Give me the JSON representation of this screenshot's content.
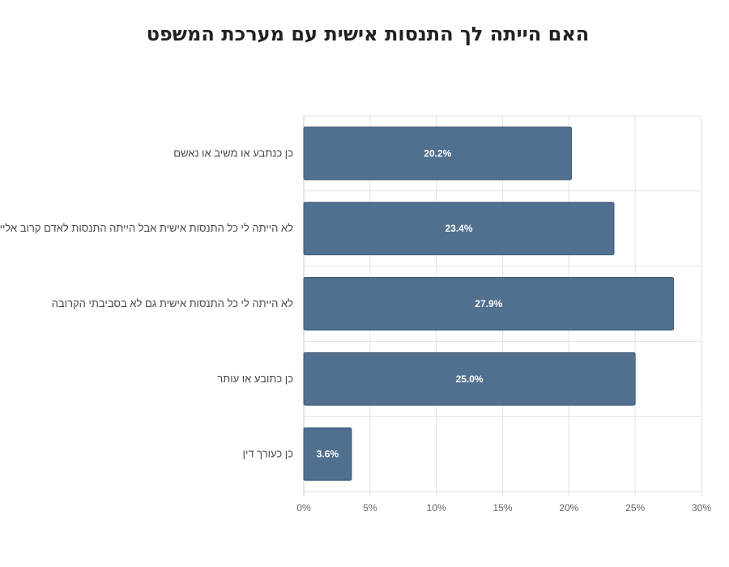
{
  "chart_data": {
    "type": "bar",
    "orientation": "horizontal",
    "title": "האם הייתה לך התנסות אישית עם מערכת המשפט",
    "categories": [
      "כן כנתבע או משיב או נאשם",
      "לא הייתה לי כל התנסות אישית אבל הייתה התנסות לאדם קרוב אליי",
      "לא הייתה לי כל התנסות אישית גם לא בסביבתי הקרובה",
      "כן כתובע או עותר",
      "כן כעורך דין"
    ],
    "values": [
      20.2,
      23.4,
      27.9,
      25.0,
      3.6
    ],
    "value_labels": [
      "20.2%",
      "23.4%",
      "27.9%",
      "25.0%",
      "3.6%"
    ],
    "x_ticks": [
      "0%",
      "5%",
      "10%",
      "15%",
      "20%",
      "25%",
      "30%"
    ],
    "xlim": [
      0,
      30
    ],
    "grid": true,
    "legend": "none",
    "colors": {
      "bar": "#516f8f",
      "bar_edge": "#3f5a78",
      "grid": "#e2e2e2",
      "axis": "#c8c8c8"
    }
  }
}
